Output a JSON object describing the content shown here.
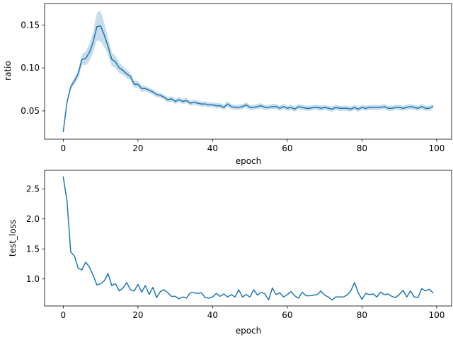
{
  "colors": {
    "line": "#1f77b4",
    "band": "#1f77b4",
    "axes": "#000000",
    "background": "#ffffff"
  },
  "chart_data": [
    {
      "type": "line",
      "title": "",
      "xlabel": "epoch",
      "ylabel": "ratio",
      "xlim": [
        -5,
        104
      ],
      "ylim": [
        0.017,
        0.175
      ],
      "xticks": [
        0,
        20,
        40,
        60,
        80,
        100
      ],
      "yticks": [
        0.05,
        0.1,
        0.15
      ],
      "ytick_labels": [
        "0.05",
        "0.10",
        "0.15"
      ],
      "grid": false,
      "confidence_band": true,
      "series": [
        {
          "x": [
            0,
            1,
            2,
            3,
            4,
            5,
            6,
            7,
            8,
            9,
            10,
            11,
            12,
            13,
            14,
            15,
            16,
            17,
            18,
            19,
            20,
            21,
            22,
            23,
            24,
            25,
            26,
            27,
            28,
            29,
            30,
            31,
            32,
            33,
            34,
            35,
            36,
            37,
            38,
            39,
            40,
            41,
            42,
            43,
            44,
            45,
            46,
            47,
            48,
            49,
            50,
            51,
            52,
            53,
            54,
            55,
            56,
            57,
            58,
            59,
            60,
            61,
            62,
            63,
            64,
            65,
            66,
            67,
            68,
            69,
            70,
            71,
            72,
            73,
            74,
            75,
            76,
            77,
            78,
            79,
            80,
            81,
            82,
            83,
            84,
            85,
            86,
            87,
            88,
            89,
            90,
            91,
            92,
            93,
            94,
            95,
            96,
            97,
            98,
            99
          ],
          "values": [
            0.026,
            0.06,
            0.078,
            0.085,
            0.093,
            0.11,
            0.111,
            0.118,
            0.13,
            0.148,
            0.149,
            0.138,
            0.125,
            0.11,
            0.107,
            0.1,
            0.097,
            0.093,
            0.09,
            0.081,
            0.081,
            0.076,
            0.076,
            0.074,
            0.072,
            0.069,
            0.068,
            0.066,
            0.063,
            0.064,
            0.061,
            0.063,
            0.061,
            0.062,
            0.059,
            0.06,
            0.059,
            0.058,
            0.058,
            0.057,
            0.057,
            0.056,
            0.056,
            0.054,
            0.058,
            0.055,
            0.054,
            0.054,
            0.055,
            0.057,
            0.054,
            0.054,
            0.055,
            0.056,
            0.054,
            0.054,
            0.055,
            0.055,
            0.053,
            0.055,
            0.053,
            0.054,
            0.052,
            0.055,
            0.054,
            0.053,
            0.053,
            0.054,
            0.054,
            0.053,
            0.054,
            0.053,
            0.052,
            0.054,
            0.053,
            0.053,
            0.053,
            0.052,
            0.054,
            0.052,
            0.054,
            0.053,
            0.054,
            0.054,
            0.054,
            0.054,
            0.055,
            0.053,
            0.053,
            0.054,
            0.054,
            0.053,
            0.054,
            0.055,
            0.054,
            0.053,
            0.055,
            0.053,
            0.053,
            0.055
          ],
          "band_halfwidth": [
            0.002,
            0.003,
            0.003,
            0.004,
            0.005,
            0.006,
            0.008,
            0.01,
            0.012,
            0.016,
            0.018,
            0.014,
            0.01,
            0.008,
            0.007,
            0.006,
            0.005,
            0.005,
            0.004,
            0.004,
            0.004,
            0.004,
            0.003,
            0.003,
            0.003,
            0.003,
            0.003,
            0.003,
            0.003,
            0.003,
            0.003,
            0.003,
            0.003,
            0.003,
            0.003,
            0.003,
            0.003,
            0.003,
            0.003,
            0.003,
            0.003,
            0.003,
            0.003,
            0.003,
            0.003,
            0.003,
            0.003,
            0.003,
            0.003,
            0.003,
            0.003,
            0.003,
            0.003,
            0.003,
            0.003,
            0.003,
            0.003,
            0.003,
            0.003,
            0.003,
            0.003,
            0.003,
            0.003,
            0.003,
            0.003,
            0.003,
            0.003,
            0.003,
            0.003,
            0.003,
            0.003,
            0.003,
            0.003,
            0.003,
            0.003,
            0.003,
            0.003,
            0.003,
            0.003,
            0.003,
            0.003,
            0.003,
            0.003,
            0.003,
            0.003,
            0.003,
            0.003,
            0.003,
            0.003,
            0.003,
            0.003,
            0.003,
            0.003,
            0.003,
            0.003,
            0.003,
            0.003,
            0.003,
            0.003,
            0.003
          ]
        }
      ]
    },
    {
      "type": "line",
      "title": "",
      "xlabel": "epoch",
      "ylabel": "test_loss",
      "xlim": [
        -5,
        104
      ],
      "ylim": [
        0.55,
        2.81
      ],
      "xticks": [
        0,
        20,
        40,
        60,
        80,
        100
      ],
      "yticks": [
        1.0,
        1.5,
        2.0,
        2.5
      ],
      "ytick_labels": [
        "1.0",
        "1.5",
        "2.0",
        "2.5"
      ],
      "grid": false,
      "confidence_band": false,
      "series": [
        {
          "x": [
            0,
            1,
            2,
            3,
            4,
            5,
            6,
            7,
            8,
            9,
            10,
            11,
            12,
            13,
            14,
            15,
            16,
            17,
            18,
            19,
            20,
            21,
            22,
            23,
            24,
            25,
            26,
            27,
            28,
            29,
            30,
            31,
            32,
            33,
            34,
            35,
            36,
            37,
            38,
            39,
            40,
            41,
            42,
            43,
            44,
            45,
            46,
            47,
            48,
            49,
            50,
            51,
            52,
            53,
            54,
            55,
            56,
            57,
            58,
            59,
            60,
            61,
            62,
            63,
            64,
            65,
            66,
            67,
            68,
            69,
            70,
            71,
            72,
            73,
            74,
            75,
            76,
            77,
            78,
            79,
            80,
            81,
            82,
            83,
            84,
            85,
            86,
            87,
            88,
            89,
            90,
            91,
            92,
            93,
            94,
            95,
            96,
            97,
            98,
            99
          ],
          "values": [
            2.7,
            2.3,
            1.45,
            1.38,
            1.18,
            1.15,
            1.28,
            1.2,
            1.06,
            0.9,
            0.92,
            0.97,
            1.09,
            0.89,
            0.92,
            0.8,
            0.85,
            0.94,
            0.82,
            0.8,
            0.91,
            0.78,
            0.89,
            0.74,
            0.86,
            0.69,
            0.79,
            0.82,
            0.77,
            0.71,
            0.71,
            0.67,
            0.7,
            0.68,
            0.77,
            0.77,
            0.76,
            0.77,
            0.69,
            0.68,
            0.7,
            0.76,
            0.71,
            0.75,
            0.7,
            0.74,
            0.7,
            0.82,
            0.7,
            0.74,
            0.7,
            0.82,
            0.73,
            0.78,
            0.75,
            0.65,
            0.85,
            0.74,
            0.77,
            0.7,
            0.74,
            0.79,
            0.72,
            0.68,
            0.78,
            0.72,
            0.72,
            0.73,
            0.74,
            0.8,
            0.73,
            0.7,
            0.65,
            0.7,
            0.7,
            0.7,
            0.73,
            0.8,
            0.94,
            0.77,
            0.66,
            0.76,
            0.74,
            0.75,
            0.7,
            0.78,
            0.74,
            0.75,
            0.71,
            0.69,
            0.74,
            0.81,
            0.7,
            0.8,
            0.7,
            0.69,
            0.84,
            0.8,
            0.83,
            0.77
          ]
        }
      ]
    }
  ]
}
